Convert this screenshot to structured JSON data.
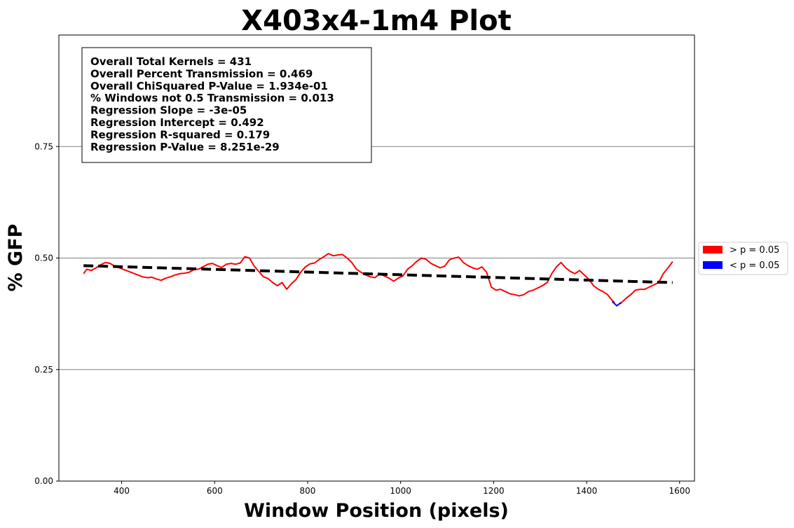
{
  "chart_data": {
    "type": "line",
    "title": "X403x4-1m4 Plot",
    "xlabel": "Window Position (pixels)",
    "ylabel": "% GFP",
    "xlim": [
      265,
      1632
    ],
    "ylim": [
      0,
      1.0
    ],
    "xticks": [
      400,
      600,
      800,
      1000,
      1200,
      1400,
      1600
    ],
    "xtick_labels": [
      "400",
      "600",
      "800",
      "1000",
      "1200",
      "1400",
      "1600"
    ],
    "yticks": [
      0,
      0.25,
      0.5,
      0.75
    ],
    "ytick_labels": [
      "0.00",
      "0.25",
      "0.50",
      "0.75"
    ],
    "grid": "horizontal",
    "legend_placement": "outside-right",
    "colors": {
      "above": "#ff0000",
      "below": "#0000ff",
      "regression": "#000000"
    },
    "legend": [
      {
        "label": "> p = 0.05",
        "color": "#ff0000"
      },
      {
        "label": "< p = 0.05",
        "color": "#0000ff"
      }
    ],
    "stats": [
      "Overall Total Kernels = 431",
      "Overall Percent Transmission = 0.469",
      "Overall ChiSquared P-Value = 1.934e-01",
      "% Windows not 0.5 Transmission = 0.013",
      "Regression Slope = -3e-05",
      "Regression Intercept = 0.492",
      "Regression R-squared = 0.179",
      "Regression P-Value = 8.251e-29"
    ],
    "regression": {
      "x": [
        318,
        1585
      ],
      "y": [
        0.483,
        0.445
      ]
    },
    "series": [
      {
        "name": "> p = 0.05",
        "color": "#ff0000",
        "segments": [
          {
            "x": [
              318,
              325,
              335,
              345,
              355,
              365,
              375,
              385,
              395,
              405,
              415,
              425,
              435,
              445,
              455,
              465,
              475,
              485,
              495,
              505,
              515,
              525,
              535,
              545,
              555,
              565,
              575,
              585,
              595,
              605,
              615,
              625,
              635,
              645,
              655,
              665,
              675,
              685,
              695,
              705,
              715,
              725,
              735,
              745,
              755,
              765,
              775,
              785,
              795,
              805,
              815,
              825,
              835,
              845,
              855,
              865,
              875,
              885,
              895,
              905,
              915,
              925,
              935,
              945,
              955,
              965,
              975,
              985,
              995,
              1005,
              1015,
              1025,
              1035,
              1045,
              1055,
              1065,
              1075,
              1085,
              1095,
              1105,
              1115,
              1125,
              1135,
              1145,
              1155,
              1165,
              1175,
              1185,
              1195,
              1205,
              1215,
              1225,
              1235,
              1245,
              1255,
              1265,
              1275,
              1285,
              1295,
              1305,
              1315,
              1325,
              1335,
              1345,
              1355,
              1365,
              1375,
              1385,
              1395,
              1405,
              1415,
              1425,
              1435,
              1445,
              1455,
              1460
            ],
            "y": [
              0.465,
              0.475,
              0.472,
              0.478,
              0.485,
              0.49,
              0.488,
              0.482,
              0.478,
              0.474,
              0.47,
              0.466,
              0.462,
              0.458,
              0.456,
              0.457,
              0.453,
              0.45,
              0.455,
              0.458,
              0.462,
              0.465,
              0.466,
              0.468,
              0.474,
              0.475,
              0.48,
              0.486,
              0.488,
              0.483,
              0.479,
              0.486,
              0.488,
              0.486,
              0.489,
              0.503,
              0.5,
              0.482,
              0.47,
              0.458,
              0.454,
              0.445,
              0.438,
              0.445,
              0.43,
              0.442,
              0.452,
              0.468,
              0.48,
              0.487,
              0.489,
              0.497,
              0.503,
              0.51,
              0.505,
              0.507,
              0.508,
              0.5,
              0.49,
              0.475,
              0.468,
              0.462,
              0.458,
              0.456,
              0.465,
              0.46,
              0.455,
              0.448,
              0.455,
              0.46,
              0.475,
              0.483,
              0.493,
              0.5,
              0.497,
              0.488,
              0.483,
              0.478,
              0.482,
              0.496,
              0.5,
              0.502,
              0.49,
              0.483,
              0.478,
              0.475,
              0.48,
              0.468,
              0.435,
              0.428,
              0.43,
              0.425,
              0.42,
              0.418,
              0.415,
              0.418,
              0.425,
              0.428,
              0.433,
              0.438,
              0.445,
              0.465,
              0.48,
              0.49,
              0.478,
              0.47,
              0.465,
              0.472,
              0.462,
              0.452,
              0.438,
              0.43,
              0.425,
              0.418,
              0.405,
              0.4
            ]
          },
          {
            "x": [
              1470,
              1475,
              1485,
              1495,
              1505,
              1515,
              1525,
              1535,
              1545,
              1555,
              1565,
              1575,
              1585
            ],
            "y": [
              0.398,
              0.4,
              0.41,
              0.418,
              0.428,
              0.43,
              0.43,
              0.435,
              0.44,
              0.445,
              0.465,
              0.478,
              0.492
            ]
          }
        ]
      },
      {
        "name": "< p = 0.05",
        "color": "#0000ff",
        "segments": [
          {
            "x": [
              1455,
              1460,
              1465,
              1470,
              1475
            ],
            "y": [
              0.402,
              0.398,
              0.393,
              0.397,
              0.4
            ]
          }
        ]
      }
    ]
  }
}
